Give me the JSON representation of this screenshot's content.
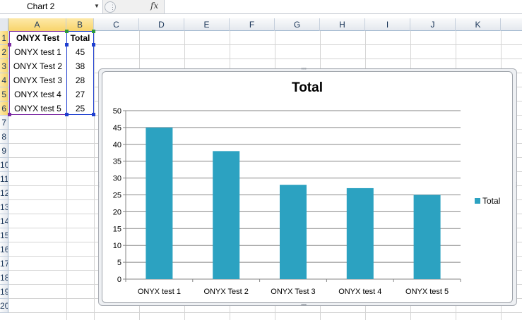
{
  "formula_bar": {
    "name_box": "Chart 2",
    "fx_label": "fx",
    "formula": ""
  },
  "columns": [
    "A",
    "B",
    "C",
    "D",
    "E",
    "F",
    "G",
    "H",
    "I",
    "J",
    "K"
  ],
  "rows": [
    "1",
    "2",
    "3",
    "4",
    "5",
    "6",
    "7",
    "8",
    "9",
    "10",
    "11",
    "12",
    "13",
    "14",
    "15",
    "16",
    "17",
    "18",
    "19",
    "20"
  ],
  "sheet": {
    "header": {
      "a": "ONYX Test",
      "b": "Total"
    },
    "rows": [
      {
        "a": "ONYX test 1",
        "b": "45"
      },
      {
        "a": "ONYX Test 2",
        "b": "38"
      },
      {
        "a": "ONYX Test 3",
        "b": "28"
      },
      {
        "a": "ONYX test 4",
        "b": "27"
      },
      {
        "a": "ONYX test 5",
        "b": "25"
      }
    ]
  },
  "colors": {
    "bar": "#2ca2c1",
    "selection_header": "#f8d46a"
  },
  "chart_data": {
    "type": "bar",
    "title": "Total",
    "categories": [
      "ONYX test 1",
      "ONYX Test 2",
      "ONYX Test 3",
      "ONYX test 4",
      "ONYX test 5"
    ],
    "series": [
      {
        "name": "Total",
        "values": [
          45,
          38,
          28,
          27,
          25
        ]
      }
    ],
    "ylim": [
      0,
      50
    ],
    "yticks": [
      "0",
      "5",
      "10",
      "15",
      "20",
      "25",
      "30",
      "35",
      "40",
      "45",
      "50"
    ],
    "grid": true,
    "legend": "right"
  }
}
